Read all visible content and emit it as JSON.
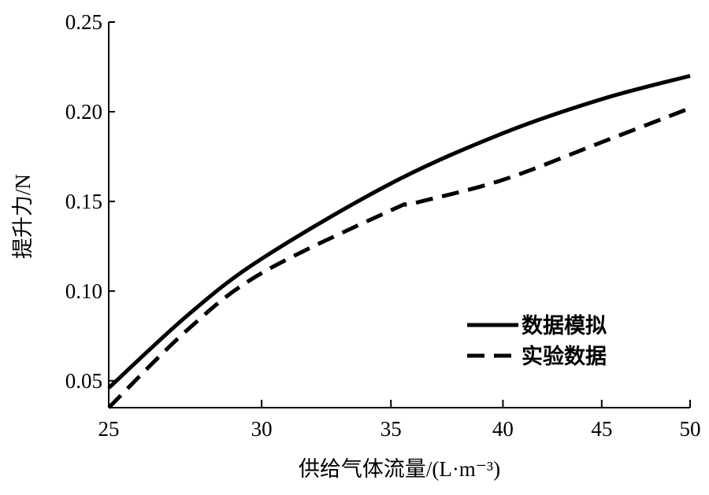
{
  "chart_data": {
    "type": "line",
    "title": "",
    "xlabel": "供给气体流量/(L·m⁻³)",
    "ylabel": "提升力/N",
    "xscale": "log",
    "xlim": [
      25,
      50
    ],
    "ylim": [
      0.035,
      0.25
    ],
    "xticks": [
      "25",
      "30",
      "35",
      "40",
      "45",
      "50"
    ],
    "yticks": [
      "0.05",
      "0.10",
      "0.15",
      "0.20",
      "0.25"
    ],
    "grid": false,
    "legend_position": "right",
    "series": [
      {
        "name": "数据模拟",
        "style": "solid",
        "color": "#000000",
        "x": [
          25,
          27.5,
          30,
          35,
          40,
          45,
          50
        ],
        "y": [
          0.046,
          0.087,
          0.118,
          0.16,
          0.188,
          0.207,
          0.22
        ]
      },
      {
        "name": "实验数据",
        "style": "dashed",
        "color": "#000000",
        "x": [
          25,
          27.5,
          30,
          35,
          36,
          40,
          45,
          50
        ],
        "y": [
          0.035,
          0.079,
          0.11,
          0.145,
          0.149,
          0.162,
          0.183,
          0.202
        ]
      }
    ]
  }
}
